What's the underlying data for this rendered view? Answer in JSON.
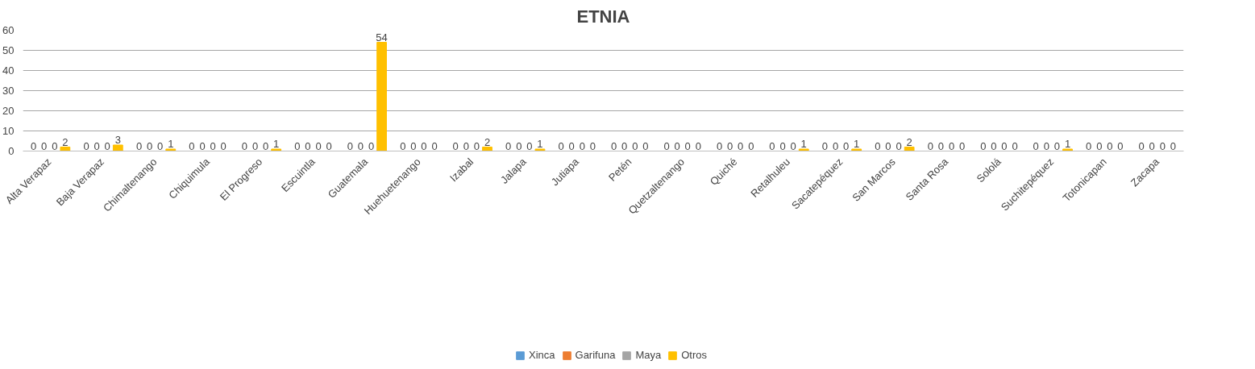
{
  "chart_data": {
    "type": "bar",
    "title": "ETNIA",
    "categories": [
      "Alta Verapaz",
      "Baja Verapaz",
      "Chimaltenango",
      "Chiquimula",
      "El Progreso",
      "Escuintla",
      "Guatemala",
      "Huehuetenango",
      "Izabal",
      "Jalapa",
      "Jutiapa",
      "Petén",
      "Quetzaltenango",
      "Quiché",
      "Retalhuleu",
      "Sacatepéquez",
      "San Marcos",
      "Santa Rosa",
      "Sololá",
      "Suchitepéquez",
      "Totonicapan",
      "Zacapa"
    ],
    "series": [
      {
        "name": "Xinca",
        "color": "#5b9bd5",
        "values": [
          0,
          0,
          0,
          0,
          0,
          0,
          0,
          0,
          0,
          0,
          0,
          0,
          0,
          0,
          0,
          0,
          0,
          0,
          0,
          0,
          0,
          0
        ]
      },
      {
        "name": "Garifuna",
        "color": "#ed7d31",
        "values": [
          0,
          0,
          0,
          0,
          0,
          0,
          0,
          0,
          0,
          0,
          0,
          0,
          0,
          0,
          0,
          0,
          0,
          0,
          0,
          0,
          0,
          0
        ]
      },
      {
        "name": "Maya",
        "color": "#a5a5a5",
        "values": [
          0,
          0,
          0,
          0,
          0,
          0,
          0,
          0,
          0,
          0,
          0,
          0,
          0,
          0,
          0,
          0,
          0,
          0,
          0,
          0,
          0,
          0
        ]
      },
      {
        "name": "Otros",
        "color": "#ffc000",
        "values": [
          2,
          3,
          1,
          0,
          1,
          0,
          54,
          0,
          2,
          1,
          0,
          0,
          0,
          0,
          1,
          1,
          2,
          0,
          0,
          1,
          0,
          0
        ]
      }
    ],
    "ylim": [
      0,
      60
    ],
    "yticks": [
      0,
      10,
      20,
      30,
      40,
      50,
      60
    ],
    "grid": "y",
    "legend": "bottom",
    "data_labels": true
  }
}
